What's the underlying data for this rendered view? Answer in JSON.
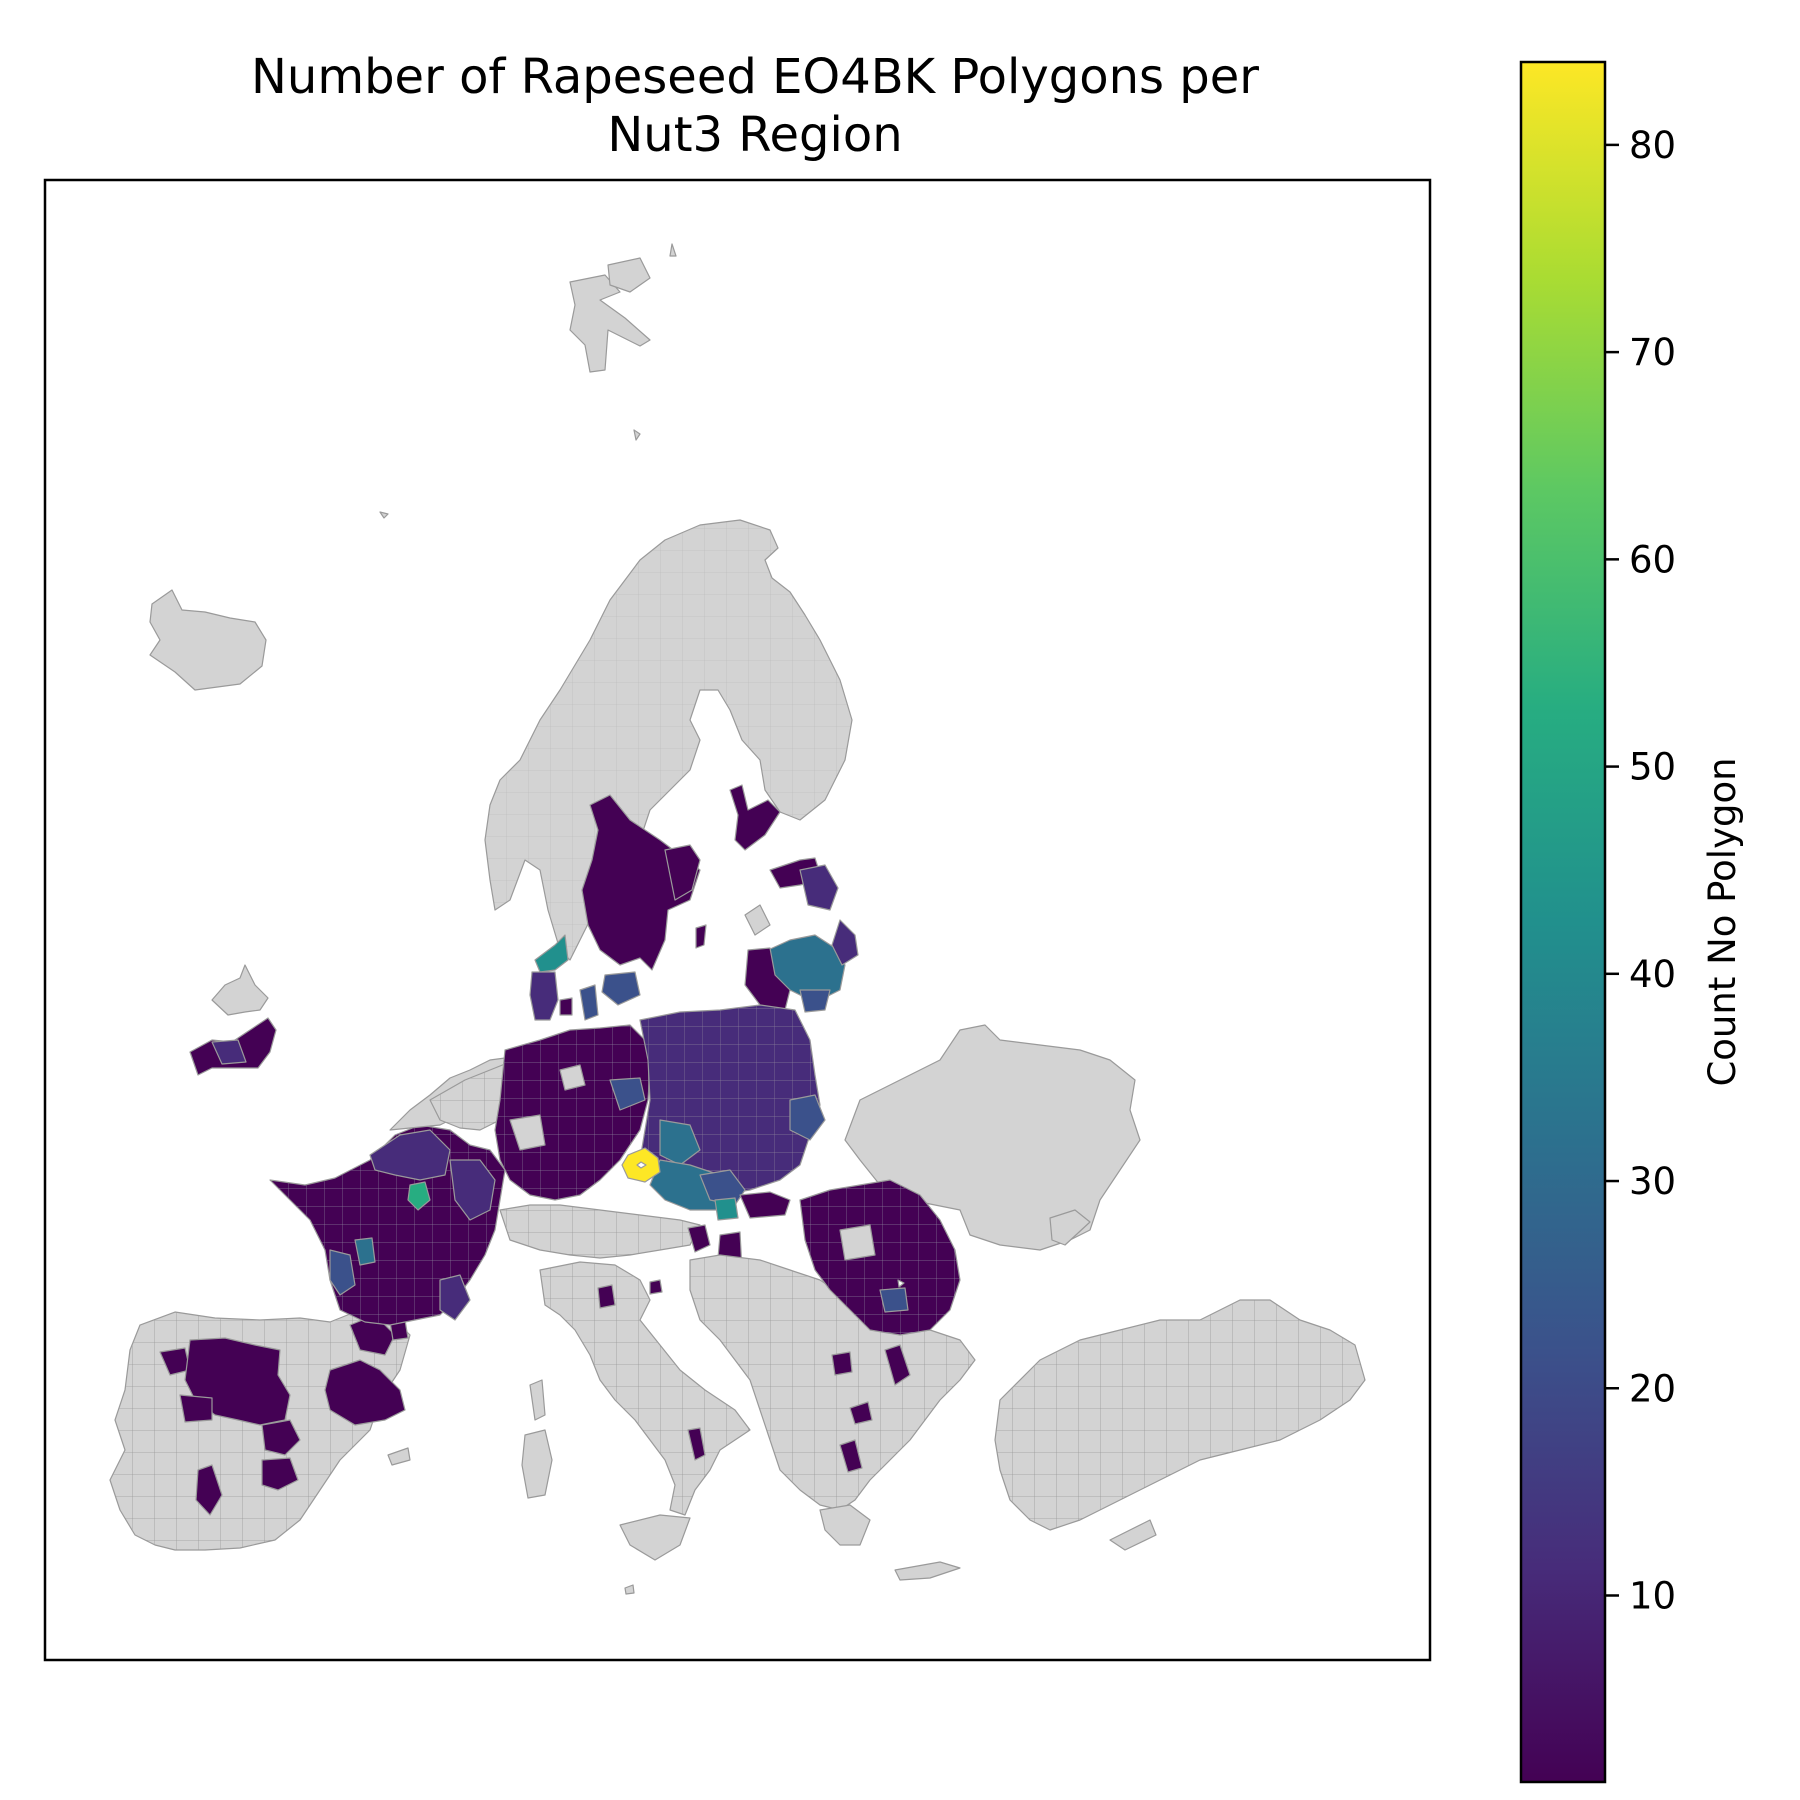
{
  "title": {
    "line1": "Number of Rapeseed EO4BK Polygons per",
    "line2": "Nut3 Region"
  },
  "colorbar": {
    "label": "Count No Polygon",
    "ticks": [
      {
        "value": 10,
        "label": "10"
      },
      {
        "value": 20,
        "label": "20"
      },
      {
        "value": 30,
        "label": "30"
      },
      {
        "value": 40,
        "label": "40"
      },
      {
        "value": 50,
        "label": "50"
      },
      {
        "value": 60,
        "label": "60"
      },
      {
        "value": 70,
        "label": "70"
      },
      {
        "value": 80,
        "label": "80"
      }
    ],
    "range": [
      1,
      84
    ],
    "colormap": "viridis",
    "stops": [
      "#440154",
      "#472c7a",
      "#3b518b",
      "#2c718e",
      "#21908d",
      "#27ad81",
      "#5cc863",
      "#aadc32",
      "#fde725"
    ]
  },
  "map": {
    "no_data_color": "#d3d3d3",
    "border_color": "#9a9a9a",
    "frame": "on",
    "axis_ticks": "off"
  }
}
